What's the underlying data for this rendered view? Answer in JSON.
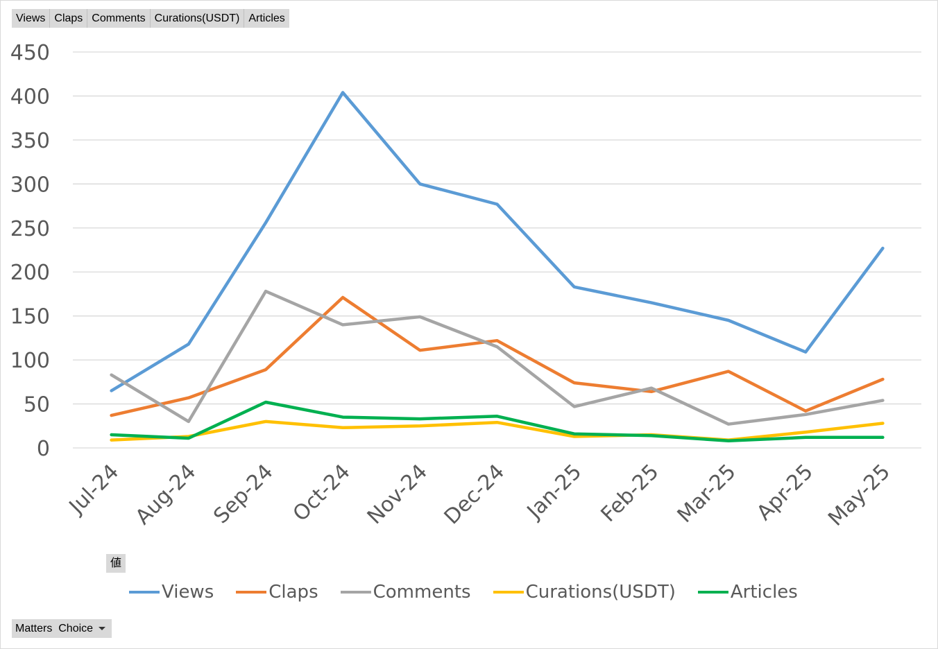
{
  "field_buttons": [
    "Views",
    "Claps",
    "Comments",
    "Curations(USDT)",
    "Articles"
  ],
  "values_button": "値",
  "filter": {
    "label": "Matters  Choice",
    "icon": "dropdown-arrow-icon"
  },
  "chart_data": {
    "type": "line",
    "title": "",
    "xlabel": "",
    "ylabel": "",
    "categories": [
      "Jul-24",
      "Aug-24",
      "Sep-24",
      "Oct-24",
      "Nov-24",
      "Dec-24",
      "Jan-25",
      "Feb-25",
      "Mar-25",
      "Apr-25",
      "May-25"
    ],
    "ylim": [
      0,
      450
    ],
    "yticks": [
      "0",
      "50",
      "100",
      "150",
      "200",
      "250",
      "300",
      "350",
      "400",
      "450"
    ],
    "grid": true,
    "legend_position": "bottom",
    "series": [
      {
        "name": "Views",
        "color": "#5b9bd5",
        "values": [
          65,
          118,
          256,
          404,
          300,
          277,
          183,
          165,
          145,
          109,
          227
        ]
      },
      {
        "name": "Claps",
        "color": "#ed7d31",
        "values": [
          37,
          57,
          89,
          171,
          111,
          122,
          74,
          64,
          87,
          42,
          78
        ]
      },
      {
        "name": "Comments",
        "color": "#a5a5a5",
        "values": [
          83,
          30,
          178,
          140,
          149,
          115,
          47,
          68,
          27,
          38,
          54
        ]
      },
      {
        "name": "Curations(USDT)",
        "color": "#ffc000",
        "values": [
          9,
          13,
          30,
          23,
          25,
          29,
          13,
          15,
          9,
          18,
          28
        ]
      },
      {
        "name": "Articles",
        "color": "#00b050",
        "values": [
          15,
          11,
          52,
          35,
          33,
          36,
          16,
          14,
          8,
          12,
          12
        ]
      }
    ]
  }
}
